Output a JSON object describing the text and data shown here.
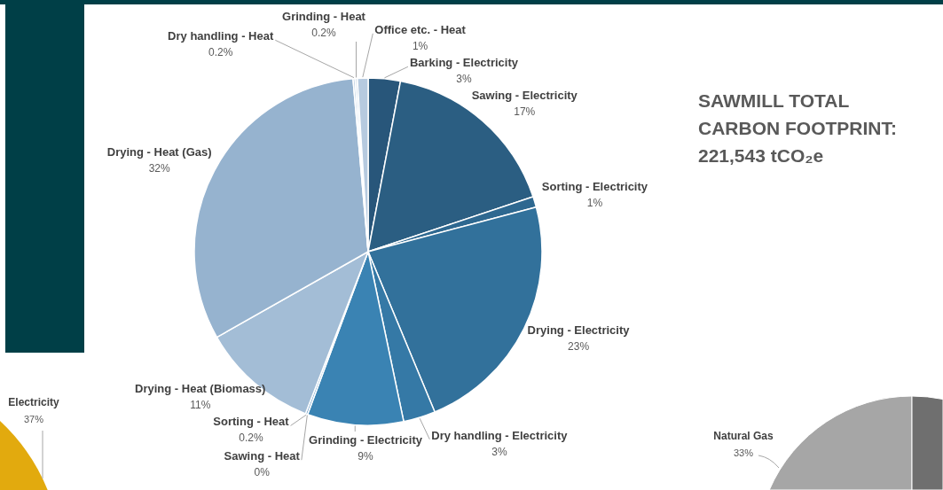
{
  "chart_data": {
    "type": "pie",
    "title": "SAWMILL TOTAL CARBON FOOTPRINT: 221,543 tCO₂e",
    "categories": [
      "Barking - Electricity",
      "Sawing - Electricity",
      "Sorting - Electricity",
      "Drying - Electricity",
      "Dry handling - Electricity",
      "Grinding - Electricity",
      "Sawing - Heat",
      "Sorting - Heat",
      "Drying - Heat (Biomass)",
      "Drying - Heat (Gas)",
      "Dry handling - Heat",
      "Grinding - Heat",
      "Office etc. - Heat"
    ],
    "values": [
      3,
      17,
      1,
      23,
      3,
      9,
      0,
      0.2,
      11,
      32,
      0.2,
      0.2,
      1
    ],
    "value_labels": [
      "3%",
      "17%",
      "1%",
      "23%",
      "3%",
      "9%",
      "0%",
      "0.2%",
      "11%",
      "32%",
      "0.2%",
      "0.2%",
      "1%"
    ],
    "colors": [
      "#28567a",
      "#2b5e82",
      "#2e6890",
      "#32719b",
      "#3579a6",
      "#3a83b3",
      "#5b97c6",
      "#7ea9cf",
      "#a3bdd6",
      "#96b3cf",
      "#c2d3e4",
      "#cddbe9",
      "#b6cadf"
    ],
    "annotations": [
      "Electricity",
      "37%",
      "Natural Gas",
      "33%"
    ]
  }
}
